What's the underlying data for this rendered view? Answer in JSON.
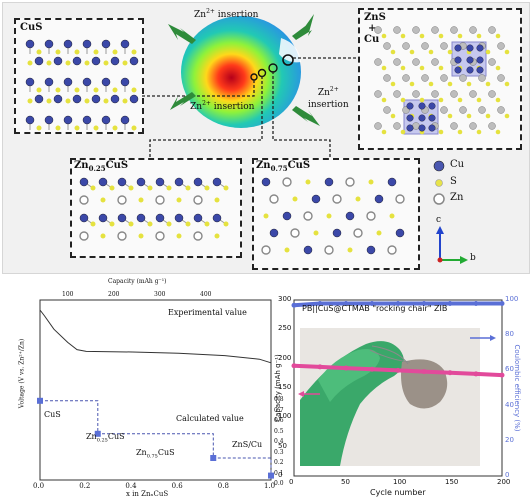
{
  "top": {
    "cus_label": "CuS",
    "zns_label_1": "ZnS",
    "zns_label_plus": "+",
    "zns_label_2": "Cu",
    "insertion_left_1": "Zn",
    "insertion_left_sup": "2+",
    "insertion_left_2": " insertion",
    "insertion_right_1": "Zn",
    "insertion_right_sup": "2+",
    "insertion_right_2": "insertion",
    "zn025_label_a": "Zn",
    "zn025_label_sub": "0.25",
    "zn025_label_b": "CuS",
    "zn075_label_a": "Zn",
    "zn075_label_sub": "0.75",
    "zn075_label_b": "CuS",
    "legend": [
      {
        "label": "Cu",
        "color": "#4a57b0"
      },
      {
        "label": "S",
        "color": "#e7e34a"
      },
      {
        "label": "Zn",
        "color": "#b8b8b8"
      }
    ],
    "axis_c": "c",
    "axis_b": "b",
    "colors": {
      "cu": "#3b48a8",
      "s": "#e5e23f",
      "zn": "#bdbdbd",
      "arrow": "#2e8b3a"
    }
  },
  "left_chart": {
    "top_axis_label": "Capacity (mAh g⁻¹)",
    "top_ticks": [
      "100",
      "200",
      "300",
      "400"
    ],
    "ylabel": "Voltage (V vs. Zn²⁺/Zn)",
    "xlabel": "x in ZnₓCuS",
    "x_ticks": [
      "0.0",
      "0.2",
      "0.4",
      "0.6",
      "0.8",
      "1.0"
    ],
    "right_ticks": [
      "0.8",
      "0.7",
      "0.6",
      "0.5",
      "0.4",
      "0.3",
      "0.2",
      "0.1",
      "0.0"
    ],
    "experimental_label": "Experimental value",
    "calculated_label": "Calculated value",
    "phases": [
      {
        "name": "CuS",
        "x": 0.0,
        "v": 0.72
      },
      {
        "name": "Zn0.25CuS",
        "x": 0.25,
        "v": 0.42
      },
      {
        "name": "Zn0.75CuS",
        "x": 0.75,
        "v": 0.2
      },
      {
        "name": "ZnS/Cu",
        "x": 1.0,
        "v": 0.04
      }
    ],
    "phase_labels": {
      "cus": "CuS",
      "zn025_a": "Zn",
      "zn025_sub": "0.25",
      "zn025_b": "CuS",
      "zn075_a": "Zn",
      "zn075_sub": "0.75",
      "zn075_b": "CuS",
      "zns": "ZnS/Cu"
    }
  },
  "chart_data": {
    "type": "scatter",
    "title": "PB||CuS@CTMAB \"rocking chair\" ZIB",
    "xlabel": "Cycle number",
    "ylabel": "Capacity (mAh g⁻¹)",
    "y2label": "Coulombic efficiency (%)",
    "xlim": [
      0,
      200
    ],
    "ylim": [
      0,
      300
    ],
    "y2lim": [
      0,
      100
    ],
    "x_ticks": [
      "0",
      "50",
      "100",
      "150",
      "200"
    ],
    "y_ticks": [
      "0",
      "50",
      "100",
      "150",
      "200",
      "250",
      "300"
    ],
    "y2_ticks": [
      "0",
      "20",
      "40",
      "60",
      "80",
      "100"
    ],
    "series": [
      {
        "axis": "left",
        "color": "#e24a9b",
        "x": [
          0,
          25,
          50,
          75,
          100,
          125,
          150,
          175,
          200
        ],
        "y": [
          188,
          186,
          184,
          182,
          180,
          178,
          176,
          174,
          172
        ]
      },
      {
        "axis": "right",
        "color": "#5a6fd6",
        "x": [
          0,
          25,
          50,
          75,
          100,
          125,
          150,
          175,
          200
        ],
        "y": [
          97,
          98,
          98,
          98,
          98,
          98,
          98,
          98,
          98
        ]
      }
    ]
  }
}
